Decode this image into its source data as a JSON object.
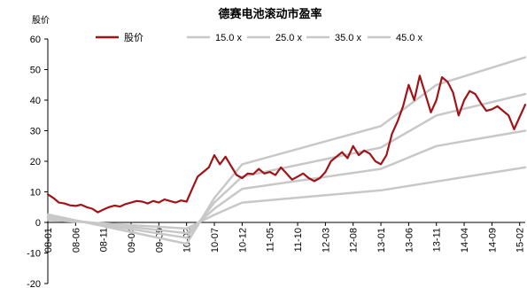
{
  "chart_data": {
    "type": "line",
    "title": "德赛电池滚动市盈率",
    "ylabel": "股价",
    "xlabel": "",
    "ylim": [
      -20,
      60
    ],
    "yticks": [
      -20,
      -10,
      0,
      10,
      20,
      30,
      40,
      50,
      60
    ],
    "xticks": [
      "08-01",
      "08-06",
      "08-11",
      "09-04",
      "09-09",
      "10-02",
      "10-07",
      "10-12",
      "11-05",
      "11-10",
      "12-03",
      "12-08",
      "13-01",
      "13-06",
      "13-11",
      "14-04",
      "14-09",
      "15-02"
    ],
    "grid": false,
    "legend_position": "top",
    "series": [
      {
        "name": "股价",
        "color": "#a01418",
        "points": [
          [
            "08-01",
            9.2
          ],
          [
            "08-02",
            8.0
          ],
          [
            "08-03",
            6.5
          ],
          [
            "08-04",
            6.2
          ],
          [
            "08-05",
            5.6
          ],
          [
            "08-06",
            5.4
          ],
          [
            "08-07",
            5.8
          ],
          [
            "08-08",
            5.0
          ],
          [
            "08-09",
            4.5
          ],
          [
            "08-10",
            3.3
          ],
          [
            "08-11",
            4.2
          ],
          [
            "08-12",
            5.0
          ],
          [
            "09-01",
            5.5
          ],
          [
            "09-02",
            5.2
          ],
          [
            "09-03",
            6.0
          ],
          [
            "09-04",
            6.5
          ],
          [
            "09-05",
            7.0
          ],
          [
            "09-06",
            6.8
          ],
          [
            "09-07",
            6.2
          ],
          [
            "09-08",
            7.0
          ],
          [
            "09-09",
            6.5
          ],
          [
            "09-10",
            7.5
          ],
          [
            "09-11",
            7.0
          ],
          [
            "09-12",
            6.5
          ],
          [
            "10-01",
            7.2
          ],
          [
            "10-02",
            6.8
          ],
          [
            "10-03",
            11.0
          ],
          [
            "10-04",
            15.0
          ],
          [
            "10-05",
            16.5
          ],
          [
            "10-06",
            18.0
          ],
          [
            "10-07",
            22.0
          ],
          [
            "10-08",
            19.0
          ],
          [
            "10-09",
            21.5
          ],
          [
            "10-10",
            18.5
          ],
          [
            "10-11",
            15.5
          ],
          [
            "10-12",
            14.5
          ],
          [
            "11-01",
            16.0
          ],
          [
            "11-02",
            15.8
          ],
          [
            "11-03",
            17.5
          ],
          [
            "11-04",
            16.0
          ],
          [
            "11-05",
            16.5
          ],
          [
            "11-06",
            15.5
          ],
          [
            "11-07",
            18.0
          ],
          [
            "11-08",
            16.0
          ],
          [
            "11-09",
            14.0
          ],
          [
            "11-10",
            15.0
          ],
          [
            "11-11",
            16.0
          ],
          [
            "11-12",
            14.5
          ],
          [
            "12-01",
            13.5
          ],
          [
            "12-02",
            14.5
          ],
          [
            "12-03",
            16.5
          ],
          [
            "12-04",
            20.0
          ],
          [
            "12-05",
            21.5
          ],
          [
            "12-06",
            23.0
          ],
          [
            "12-07",
            21.0
          ],
          [
            "12-08",
            25.0
          ],
          [
            "12-09",
            22.0
          ],
          [
            "12-10",
            23.5
          ],
          [
            "12-11",
            22.5
          ],
          [
            "12-12",
            20.0
          ],
          [
            "13-01",
            19.0
          ],
          [
            "13-02",
            22.0
          ],
          [
            "13-03",
            29.0
          ],
          [
            "13-04",
            33.0
          ],
          [
            "13-05",
            38.0
          ],
          [
            "13-06",
            45.0
          ],
          [
            "13-07",
            40.0
          ],
          [
            "13-08",
            48.0
          ],
          [
            "13-09",
            42.0
          ],
          [
            "13-10",
            36.0
          ],
          [
            "13-11",
            40.0
          ],
          [
            "13-12",
            47.5
          ],
          [
            "14-01",
            46.0
          ],
          [
            "14-02",
            42.5
          ],
          [
            "14-03",
            35.0
          ],
          [
            "14-04",
            40.0
          ],
          [
            "14-05",
            43.0
          ],
          [
            "14-06",
            42.0
          ],
          [
            "14-07",
            39.0
          ],
          [
            "14-08",
            36.5
          ],
          [
            "14-09",
            37.0
          ],
          [
            "14-10",
            38.0
          ],
          [
            "14-11",
            36.5
          ],
          [
            "14-12",
            35.0
          ],
          [
            "15-01",
            30.5
          ],
          [
            "15-02",
            34.5
          ],
          [
            "15-03",
            38.5
          ]
        ]
      },
      {
        "name": "15.0 x",
        "color": "#c8c8c8",
        "points": [
          [
            "08-01",
            0.8
          ],
          [
            "10-02",
            -2.0
          ],
          [
            "10-07",
            2.5
          ],
          [
            "10-12",
            6.5
          ],
          [
            "13-01",
            10.5
          ],
          [
            "15-03",
            18.0
          ]
        ]
      },
      {
        "name": "25.0 x",
        "color": "#c8c8c8",
        "points": [
          [
            "08-01",
            1.5
          ],
          [
            "10-02",
            -3.5
          ],
          [
            "10-07",
            4.5
          ],
          [
            "10-12",
            11.0
          ],
          [
            "13-01",
            17.5
          ],
          [
            "13-11",
            25.0
          ],
          [
            "15-03",
            30.0
          ]
        ]
      },
      {
        "name": "35.0 x",
        "color": "#c8c8c8",
        "points": [
          [
            "08-01",
            2.0
          ],
          [
            "10-02",
            -5.0
          ],
          [
            "10-07",
            6.5
          ],
          [
            "10-12",
            15.0
          ],
          [
            "13-01",
            24.5
          ],
          [
            "13-11",
            35.0
          ],
          [
            "15-03",
            42.0
          ]
        ]
      },
      {
        "name": "45.0 x",
        "color": "#c8c8c8",
        "points": [
          [
            "08-01",
            2.6
          ],
          [
            "10-02",
            -7.0
          ],
          [
            "10-07",
            8.0
          ],
          [
            "10-12",
            19.0
          ],
          [
            "13-01",
            31.5
          ],
          [
            "13-11",
            45.0
          ],
          [
            "15-03",
            54.0
          ]
        ]
      }
    ]
  }
}
